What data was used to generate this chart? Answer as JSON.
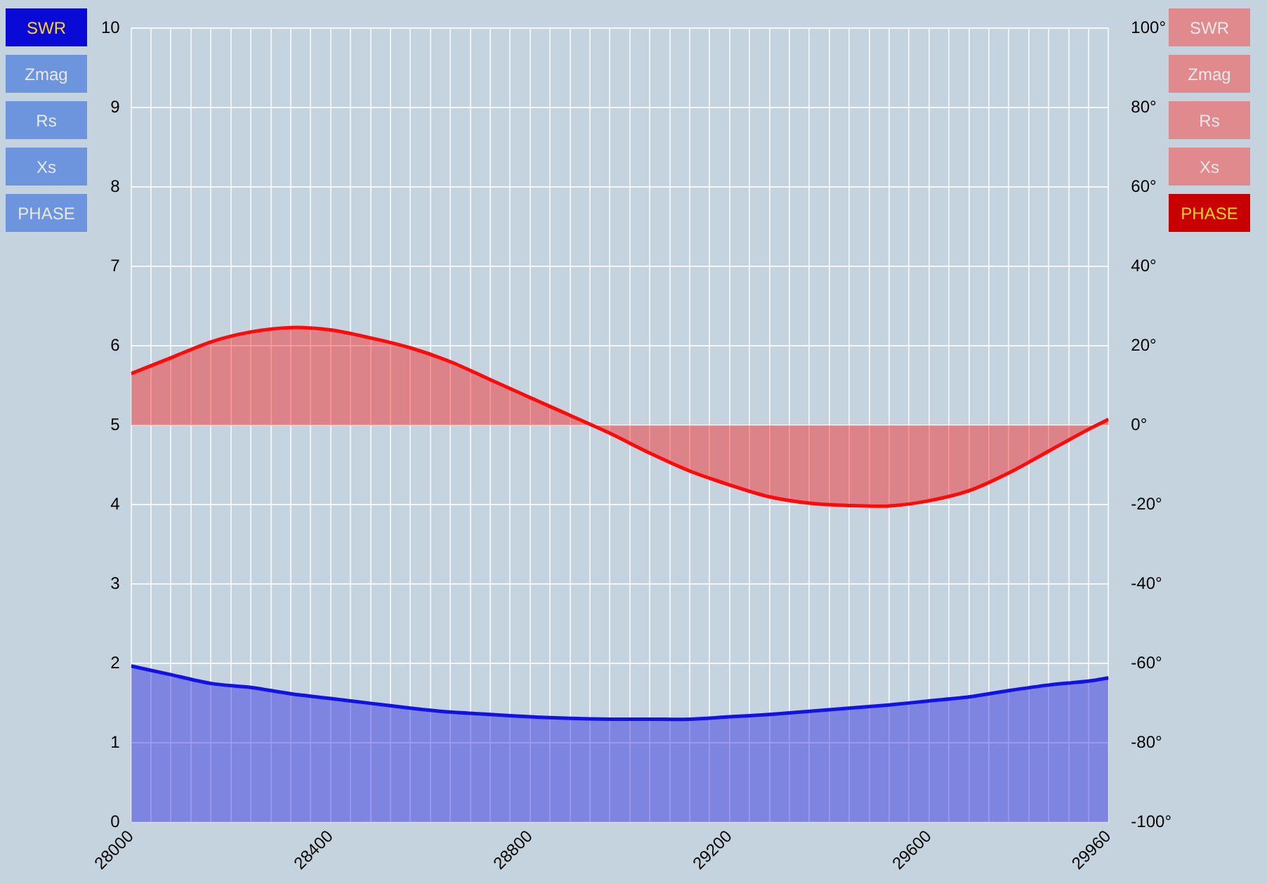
{
  "chart_data": {
    "type": "area",
    "annotations": [
      "Zmag",
      "Rs",
      "Xs"
    ],
    "x": [
      28000,
      28080,
      28160,
      28240,
      28320,
      28400,
      28480,
      28560,
      28640,
      28720,
      28800,
      28880,
      28960,
      29040,
      29120,
      29200,
      29280,
      29360,
      29440,
      29520,
      29600,
      29680,
      29760,
      29840,
      29920,
      29960
    ],
    "series": [
      {
        "name": "SWR",
        "color": "#1212e6",
        "axis": "y",
        "values": [
          1.97,
          1.86,
          1.75,
          1.7,
          1.62,
          1.56,
          1.5,
          1.44,
          1.39,
          1.36,
          1.33,
          1.31,
          1.3,
          1.3,
          1.3,
          1.33,
          1.36,
          1.4,
          1.44,
          1.48,
          1.53,
          1.58,
          1.66,
          1.73,
          1.78,
          1.82
        ]
      },
      {
        "name": "PHASE",
        "color": "#ff0a0a",
        "axis": "y2",
        "values": [
          13,
          17,
          21,
          23.5,
          24.6,
          24,
          22,
          19.5,
          16,
          11.5,
          7,
          2.5,
          -2,
          -7,
          -11.5,
          -15,
          -18,
          -19.6,
          -20.2,
          -20.3,
          -19,
          -16.5,
          -12,
          -6.5,
          -1,
          1.5
        ]
      }
    ],
    "xlim": [
      28000,
      29960
    ],
    "xticks": [
      28000,
      {
        "value": 28040,
        "label": null
      },
      {
        "value": 28080,
        "label": null
      },
      {
        "value": 28120,
        "label": null
      },
      {
        "value": 28160,
        "label": null
      },
      {
        "value": 28200,
        "label": null
      },
      {
        "value": 28240,
        "label": null
      },
      {
        "value": 28280,
        "label": null
      },
      {
        "value": 28320,
        "label": null
      },
      {
        "value": 28360,
        "label": null
      },
      28400,
      {
        "value": 28440,
        "label": null
      },
      {
        "value": 28480,
        "label": null
      },
      {
        "value": 28520,
        "label": null
      },
      {
        "value": 28560,
        "label": null
      },
      {
        "value": 28600,
        "label": null
      },
      {
        "value": 28640,
        "label": null
      },
      {
        "value": 28680,
        "label": null
      },
      {
        "value": 28720,
        "label": null
      },
      {
        "value": 28760,
        "label": null
      },
      28800,
      {
        "value": 28840,
        "label": null
      },
      {
        "value": 28880,
        "label": null
      },
      {
        "value": 28920,
        "label": null
      },
      {
        "value": 28960,
        "label": null
      },
      {
        "value": 29000,
        "label": null
      },
      {
        "value": 29040,
        "label": null
      },
      {
        "value": 29080,
        "label": null
      },
      {
        "value": 29120,
        "label": null
      },
      {
        "value": 29160,
        "label": null
      },
      29200,
      {
        "value": 29240,
        "label": null
      },
      {
        "value": 29280,
        "label": null
      },
      {
        "value": 29320,
        "label": null
      },
      {
        "value": 29360,
        "label": null
      },
      {
        "value": 29400,
        "label": null
      },
      {
        "value": 29440,
        "label": null
      },
      {
        "value": 29480,
        "label": null
      },
      {
        "value": 29520,
        "label": null
      },
      {
        "value": 29560,
        "label": null
      },
      29600,
      {
        "value": 29640,
        "label": null
      },
      {
        "value": 29680,
        "label": null
      },
      {
        "value": 29720,
        "label": null
      },
      {
        "value": 29760,
        "label": null
      },
      {
        "value": 29800,
        "label": null
      },
      {
        "value": 29840,
        "label": null
      },
      {
        "value": 29880,
        "label": null
      },
      {
        "value": 29920,
        "label": null
      },
      29960
    ],
    "ylim": [
      0,
      10
    ],
    "yticks": [
      0,
      1,
      2,
      3,
      4,
      5,
      6,
      7,
      8,
      9,
      10
    ],
    "y2lim": [
      -100,
      100
    ],
    "y2ticks": [
      {
        "value": -100,
        "label": "-100°"
      },
      {
        "value": -80,
        "label": "-80°"
      },
      {
        "value": -60,
        "label": "-60°"
      },
      {
        "value": -40,
        "label": "-40°"
      },
      {
        "value": -20,
        "label": "-20°"
      },
      {
        "value": 0,
        "label": "0°"
      },
      {
        "value": 20,
        "label": "20°"
      },
      {
        "value": 40,
        "label": "40°"
      },
      {
        "value": 60,
        "label": "60°"
      },
      {
        "value": 80,
        "label": "80°"
      },
      {
        "value": 100,
        "label": "100°"
      }
    ],
    "grid": true,
    "legend": "right",
    "marker": "none"
  }
}
